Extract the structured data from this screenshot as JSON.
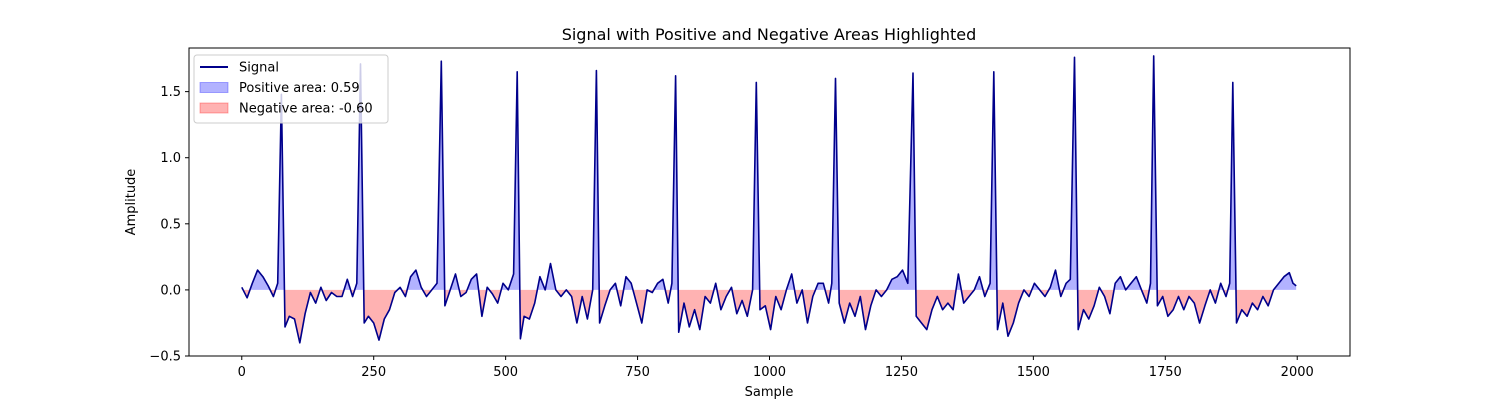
{
  "chart_data": {
    "type": "line",
    "title": "Signal with Positive and Negative Areas Highlighted",
    "xlabel": "Sample",
    "ylabel": "Amplitude",
    "xlim": [
      -100,
      2100
    ],
    "ylim": [
      -0.5,
      1.83
    ],
    "xticks": [
      0,
      250,
      500,
      750,
      1000,
      1250,
      1500,
      1750,
      2000
    ],
    "yticks": [
      -0.5,
      0.0,
      0.5,
      1.0,
      1.5
    ],
    "xtick_labels": [
      "0",
      "250",
      "500",
      "750",
      "1000",
      "1250",
      "1500",
      "1750",
      "2000"
    ],
    "ytick_labels": [
      "−0.5",
      "0.0",
      "0.5",
      "1.0",
      "1.5"
    ],
    "grid": false,
    "legend_position": "top-left",
    "series": [
      {
        "name": "Signal",
        "color": "#00008b",
        "peaks": [
          {
            "x": 75,
            "y": 1.48
          },
          {
            "x": 225,
            "y": 1.71
          },
          {
            "x": 378,
            "y": 1.73
          },
          {
            "x": 522,
            "y": 1.65
          },
          {
            "x": 672,
            "y": 1.66
          },
          {
            "x": 822,
            "y": 1.62
          },
          {
            "x": 975,
            "y": 1.57
          },
          {
            "x": 1125,
            "y": 1.6
          },
          {
            "x": 1272,
            "y": 1.64
          },
          {
            "x": 1425,
            "y": 1.65
          },
          {
            "x": 1578,
            "y": 1.76
          },
          {
            "x": 1728,
            "y": 1.77
          },
          {
            "x": 1878,
            "y": 1.57
          }
        ],
        "points": [
          [
            0,
            0.02
          ],
          [
            10,
            -0.06
          ],
          [
            20,
            0.05
          ],
          [
            30,
            0.15
          ],
          [
            40,
            0.1
          ],
          [
            50,
            0.03
          ],
          [
            60,
            -0.05
          ],
          [
            68,
            0.05
          ],
          [
            75,
            1.48
          ],
          [
            82,
            -0.28
          ],
          [
            90,
            -0.2
          ],
          [
            100,
            -0.22
          ],
          [
            110,
            -0.4
          ],
          [
            120,
            -0.18
          ],
          [
            130,
            -0.02
          ],
          [
            140,
            -0.1
          ],
          [
            150,
            0.02
          ],
          [
            160,
            -0.08
          ],
          [
            170,
            -0.02
          ],
          [
            180,
            -0.05
          ],
          [
            190,
            -0.05
          ],
          [
            200,
            0.08
          ],
          [
            210,
            -0.05
          ],
          [
            218,
            0.05
          ],
          [
            225,
            1.71
          ],
          [
            232,
            -0.25
          ],
          [
            240,
            -0.2
          ],
          [
            250,
            -0.25
          ],
          [
            260,
            -0.38
          ],
          [
            270,
            -0.22
          ],
          [
            280,
            -0.15
          ],
          [
            290,
            -0.02
          ],
          [
            300,
            0.02
          ],
          [
            310,
            -0.05
          ],
          [
            320,
            0.1
          ],
          [
            330,
            0.15
          ],
          [
            340,
            0.02
          ],
          [
            350,
            -0.05
          ],
          [
            360,
            0.0
          ],
          [
            370,
            0.05
          ],
          [
            378,
            1.73
          ],
          [
            385,
            -0.12
          ],
          [
            395,
            0.0
          ],
          [
            405,
            0.12
          ],
          [
            415,
            -0.05
          ],
          [
            425,
            -0.02
          ],
          [
            435,
            0.08
          ],
          [
            445,
            0.12
          ],
          [
            455,
            -0.2
          ],
          [
            465,
            0.02
          ],
          [
            475,
            -0.03
          ],
          [
            485,
            -0.1
          ],
          [
            495,
            0.05
          ],
          [
            505,
            0.0
          ],
          [
            515,
            0.12
          ],
          [
            522,
            1.65
          ],
          [
            528,
            -0.37
          ],
          [
            535,
            -0.2
          ],
          [
            545,
            -0.22
          ],
          [
            555,
            -0.1
          ],
          [
            565,
            0.1
          ],
          [
            575,
            0.0
          ],
          [
            585,
            0.2
          ],
          [
            595,
            0.0
          ],
          [
            605,
            -0.05
          ],
          [
            615,
            0.0
          ],
          [
            625,
            -0.05
          ],
          [
            635,
            -0.25
          ],
          [
            645,
            -0.05
          ],
          [
            655,
            -0.22
          ],
          [
            665,
            0.0
          ],
          [
            672,
            1.66
          ],
          [
            678,
            -0.25
          ],
          [
            688,
            -0.12
          ],
          [
            698,
            0.0
          ],
          [
            708,
            0.05
          ],
          [
            718,
            -0.12
          ],
          [
            728,
            0.1
          ],
          [
            738,
            0.05
          ],
          [
            748,
            -0.1
          ],
          [
            758,
            -0.25
          ],
          [
            768,
            0.0
          ],
          [
            778,
            -0.02
          ],
          [
            788,
            0.05
          ],
          [
            798,
            0.08
          ],
          [
            808,
            -0.1
          ],
          [
            815,
            0.05
          ],
          [
            822,
            1.62
          ],
          [
            828,
            -0.32
          ],
          [
            838,
            -0.1
          ],
          [
            848,
            -0.28
          ],
          [
            858,
            -0.15
          ],
          [
            868,
            -0.3
          ],
          [
            878,
            -0.05
          ],
          [
            888,
            -0.1
          ],
          [
            898,
            0.05
          ],
          [
            908,
            -0.15
          ],
          [
            918,
            -0.05
          ],
          [
            928,
            0.02
          ],
          [
            938,
            -0.18
          ],
          [
            948,
            -0.08
          ],
          [
            958,
            -0.2
          ],
          [
            968,
            0.0
          ],
          [
            975,
            1.57
          ],
          [
            982,
            -0.15
          ],
          [
            992,
            -0.12
          ],
          [
            1002,
            -0.3
          ],
          [
            1012,
            -0.05
          ],
          [
            1022,
            -0.15
          ],
          [
            1032,
            0.0
          ],
          [
            1042,
            0.12
          ],
          [
            1052,
            -0.1
          ],
          [
            1062,
            0.0
          ],
          [
            1072,
            -0.25
          ],
          [
            1082,
            -0.05
          ],
          [
            1092,
            0.05
          ],
          [
            1102,
            0.05
          ],
          [
            1112,
            -0.1
          ],
          [
            1118,
            0.05
          ],
          [
            1125,
            1.6
          ],
          [
            1132,
            -0.1
          ],
          [
            1142,
            -0.25
          ],
          [
            1152,
            -0.1
          ],
          [
            1162,
            -0.2
          ],
          [
            1172,
            -0.05
          ],
          [
            1182,
            -0.3
          ],
          [
            1192,
            -0.12
          ],
          [
            1202,
            0.0
          ],
          [
            1212,
            -0.05
          ],
          [
            1222,
            0.0
          ],
          [
            1232,
            0.08
          ],
          [
            1242,
            0.1
          ],
          [
            1252,
            0.15
          ],
          [
            1262,
            0.05
          ],
          [
            1272,
            1.64
          ],
          [
            1278,
            -0.2
          ],
          [
            1288,
            -0.25
          ],
          [
            1298,
            -0.3
          ],
          [
            1308,
            -0.15
          ],
          [
            1318,
            -0.05
          ],
          [
            1328,
            -0.15
          ],
          [
            1338,
            -0.1
          ],
          [
            1348,
            -0.15
          ],
          [
            1358,
            0.12
          ],
          [
            1368,
            -0.1
          ],
          [
            1378,
            -0.05
          ],
          [
            1388,
            0.0
          ],
          [
            1398,
            0.1
          ],
          [
            1408,
            -0.05
          ],
          [
            1418,
            0.05
          ],
          [
            1425,
            1.65
          ],
          [
            1432,
            -0.3
          ],
          [
            1442,
            -0.1
          ],
          [
            1452,
            -0.35
          ],
          [
            1462,
            -0.25
          ],
          [
            1472,
            -0.1
          ],
          [
            1482,
            0.0
          ],
          [
            1492,
            -0.05
          ],
          [
            1502,
            0.05
          ],
          [
            1512,
            0.0
          ],
          [
            1522,
            -0.05
          ],
          [
            1532,
            0.02
          ],
          [
            1542,
            0.15
          ],
          [
            1552,
            -0.05
          ],
          [
            1562,
            0.05
          ],
          [
            1570,
            0.08
          ],
          [
            1578,
            1.76
          ],
          [
            1585,
            -0.3
          ],
          [
            1595,
            -0.15
          ],
          [
            1605,
            -0.22
          ],
          [
            1615,
            -0.12
          ],
          [
            1625,
            0.02
          ],
          [
            1635,
            -0.05
          ],
          [
            1645,
            -0.18
          ],
          [
            1655,
            0.05
          ],
          [
            1665,
            0.1
          ],
          [
            1675,
            0.0
          ],
          [
            1685,
            0.05
          ],
          [
            1695,
            0.1
          ],
          [
            1705,
            0.0
          ],
          [
            1715,
            -0.1
          ],
          [
            1722,
            0.05
          ],
          [
            1728,
            1.77
          ],
          [
            1735,
            -0.12
          ],
          [
            1745,
            -0.05
          ],
          [
            1755,
            -0.2
          ],
          [
            1765,
            -0.15
          ],
          [
            1775,
            -0.05
          ],
          [
            1785,
            -0.15
          ],
          [
            1795,
            -0.05
          ],
          [
            1805,
            -0.1
          ],
          [
            1815,
            -0.25
          ],
          [
            1825,
            -0.12
          ],
          [
            1835,
            0.0
          ],
          [
            1845,
            -0.1
          ],
          [
            1855,
            0.05
          ],
          [
            1865,
            -0.05
          ],
          [
            1872,
            0.05
          ],
          [
            1878,
            1.57
          ],
          [
            1885,
            -0.25
          ],
          [
            1895,
            -0.15
          ],
          [
            1905,
            -0.2
          ],
          [
            1915,
            -0.1
          ],
          [
            1925,
            -0.15
          ],
          [
            1935,
            -0.05
          ],
          [
            1945,
            -0.12
          ],
          [
            1955,
            0.0
          ],
          [
            1965,
            0.05
          ],
          [
            1975,
            0.1
          ],
          [
            1985,
            0.13
          ],
          [
            1992,
            0.05
          ],
          [
            1998,
            0.03
          ]
        ]
      }
    ],
    "fills": [
      {
        "name": "Positive area: 0.59",
        "color": "#0000ff",
        "opacity": 0.3,
        "where": "y>0"
      },
      {
        "name": "Negative area: -0.60",
        "color": "#ff0000",
        "opacity": 0.3,
        "where": "y<0"
      }
    ],
    "legend": [
      {
        "label": "Signal",
        "kind": "line",
        "color": "#00008b"
      },
      {
        "label": "Positive area: 0.59",
        "kind": "patch",
        "color": "#0000ff"
      },
      {
        "label": "Negative area: -0.60",
        "kind": "patch",
        "color": "#ff0000"
      }
    ]
  }
}
